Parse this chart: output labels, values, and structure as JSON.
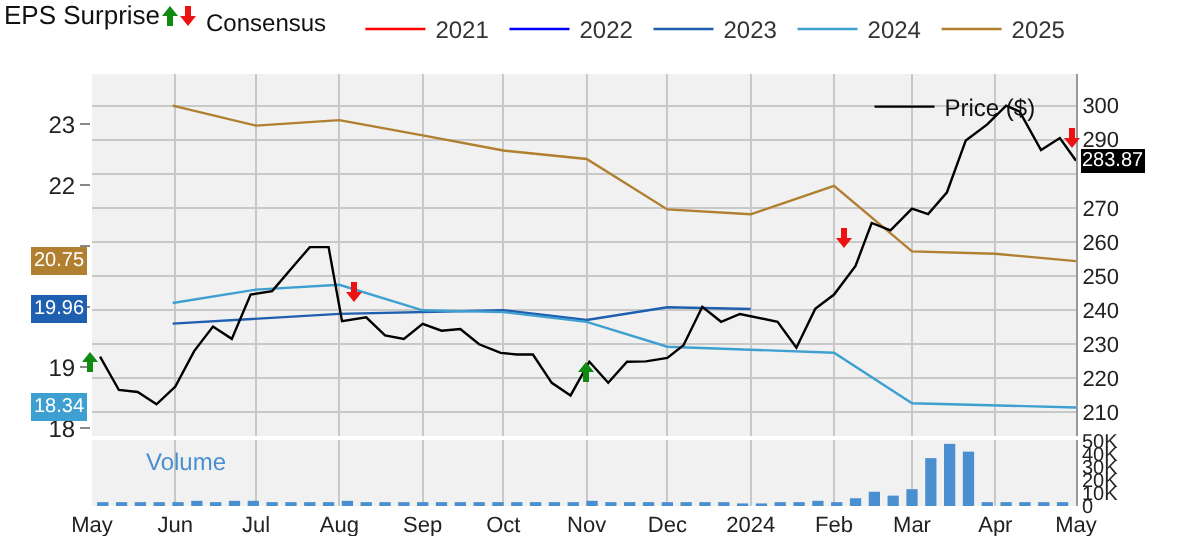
{
  "chart_data": [
    {
      "type": "line",
      "title": "EPS Surprise",
      "legend_title": "Consensus",
      "legend": "top",
      "grid": true,
      "tick_labels": "y",
      "xlim": [
        "2023-05-01",
        "2024-05-01"
      ],
      "xticks": [
        {
          "value": "2023-05-01",
          "label": null
        },
        {
          "value": "2023-06-01",
          "label": null
        },
        {
          "value": "2023-07-01",
          "label": null
        },
        {
          "value": "2023-08-01",
          "label": null
        },
        {
          "value": "2023-09-01",
          "label": null
        },
        {
          "value": "2023-10-01",
          "label": null
        },
        {
          "value": "2023-11-01",
          "label": null
        },
        {
          "value": "2023-12-01",
          "label": null
        },
        {
          "value": "2024-01-01",
          "label": null
        },
        {
          "value": "2024-02-01",
          "label": null
        },
        {
          "value": "2024-03-01",
          "label": null
        },
        {
          "value": "2024-04-01",
          "label": null
        },
        {
          "value": "2024-05-01",
          "label": null
        }
      ],
      "ylim": [
        17.87,
        23.83
      ],
      "yticks": [
        18,
        19,
        {
          "value": 20,
          "label": null
        },
        {
          "value": 21,
          "label": null
        },
        22,
        23
      ],
      "annotations": [
        {
          "text": "20.75",
          "y": 20.75
        },
        {
          "text": "19.96",
          "y": 19.96
        },
        {
          "text": "18.34",
          "y": 18.34
        }
      ],
      "y2lim": [
        203.1,
        309.3
      ],
      "y2ticks": [
        210,
        220,
        230,
        240,
        250,
        260,
        270,
        {
          "value": 280,
          "label": null
        },
        290,
        300
      ],
      "series": [
        {
          "name": "2021",
          "color": "#ff0000"
        },
        {
          "name": "2022",
          "color": "#0000ff"
        },
        {
          "name": "2023",
          "color": "#1f5fb0",
          "x": [
            "2023-05-31",
            "2023-08-01",
            "2023-10-01",
            "2023-11-01",
            "2023-12-01",
            "2024-01-01"
          ],
          "values": [
            19.72,
            19.88,
            19.94,
            19.78,
            19.99,
            19.96
          ]
        },
        {
          "name": "2024",
          "color": "#3ea0d0",
          "x": [
            "2023-05-31",
            "2023-07-01",
            "2023-08-01",
            "2023-09-01",
            "2023-10-01",
            "2023-11-01",
            "2023-12-01",
            "2024-02-01",
            "2024-03-01",
            "2024-05-01"
          ],
          "values": [
            20.06,
            20.28,
            20.36,
            19.94,
            19.91,
            19.75,
            19.34,
            19.24,
            18.41,
            18.34
          ]
        },
        {
          "name": "2025",
          "color": "#b07f30",
          "x": [
            "2023-05-31",
            "2023-07-01",
            "2023-08-01",
            "2023-09-01",
            "2023-10-01",
            "2023-11-01",
            "2023-12-01",
            "2024-01-01",
            "2024-02-01",
            "2024-03-01",
            "2024-04-01",
            "2024-05-01"
          ],
          "values": [
            23.31,
            22.98,
            23.07,
            22.82,
            22.57,
            22.43,
            21.6,
            21.52,
            21.99,
            20.91,
            20.87,
            20.75
          ]
        },
        {
          "name": "Price ($)",
          "color": "#000000",
          "axis": "y2",
          "x": [
            "2023-05-04",
            "2023-05-11",
            "2023-05-18",
            "2023-05-25",
            "2023-06-01",
            "2023-06-08",
            "2023-06-15",
            "2023-06-22",
            "2023-06-29",
            "2023-07-07",
            "2023-07-16",
            "2023-07-21",
            "2023-07-28",
            "2023-08-02",
            "2023-08-11",
            "2023-08-18",
            "2023-08-25",
            "2023-09-01",
            "2023-09-08",
            "2023-09-15",
            "2023-09-22",
            "2023-09-30",
            "2023-10-06",
            "2023-10-12",
            "2023-10-19",
            "2023-10-26",
            "2023-11-02",
            "2023-11-09",
            "2023-11-16",
            "2023-11-23",
            "2023-12-01",
            "2023-12-07",
            "2023-12-14",
            "2023-12-21",
            "2023-12-28",
            "2024-01-11",
            "2024-01-18",
            "2024-01-25",
            "2024-02-01",
            "2024-02-09",
            "2024-02-15",
            "2024-02-22",
            "2024-03-01",
            "2024-03-07",
            "2024-03-14",
            "2024-03-21",
            "2024-03-29",
            "2024-04-05",
            "2024-04-10",
            "2024-04-18",
            "2024-04-25",
            "2024-05-01"
          ],
          "values": [
            226.4,
            216.6,
            216,
            212.4,
            217.6,
            228,
            235.2,
            231.6,
            244.6,
            245.6,
            253.9,
            258.5,
            258.5,
            236.8,
            237.9,
            232.6,
            231.6,
            236,
            234,
            234.5,
            230,
            227.5,
            227,
            227,
            218.7,
            215,
            224.9,
            218.7,
            224.9,
            225,
            226,
            229.7,
            241,
            236.6,
            238.9,
            236.6,
            229,
            240.4,
            244.6,
            253,
            265.6,
            263.4,
            269.8,
            268.2,
            274.6,
            289.8,
            294.5,
            300,
            298.3,
            287,
            290.5,
            283.87
          ],
          "value_labels": [
            null,
            null,
            null,
            null,
            null,
            null,
            null,
            null,
            null,
            null,
            null,
            null,
            null,
            null,
            null,
            null,
            null,
            null,
            null,
            null,
            null,
            null,
            null,
            null,
            null,
            null,
            null,
            null,
            null,
            null,
            null,
            null,
            null,
            null,
            null,
            null,
            null,
            null,
            null,
            null,
            null,
            null,
            null,
            null,
            null,
            null,
            null,
            null,
            null,
            null,
            null,
            "283.87"
          ]
        }
      ]
    },
    {
      "type": "bar",
      "title": "Volume",
      "grid": "x",
      "xlim": [
        "2023-05-01",
        "2024-05-01"
      ],
      "xticks": [
        {
          "value": "2023-05-01",
          "label": "May"
        },
        {
          "value": "2023-06-01",
          "label": "Jun"
        },
        {
          "value": "2023-07-01",
          "label": "Jul"
        },
        {
          "value": "2023-08-01",
          "label": "Aug"
        },
        {
          "value": "2023-09-01",
          "label": "Sep"
        },
        {
          "value": "2023-10-01",
          "label": "Oct"
        },
        {
          "value": "2023-11-01",
          "label": "Nov"
        },
        {
          "value": "2023-12-01",
          "label": "Dec"
        },
        {
          "value": "2024-01-01",
          "label": "2024"
        },
        {
          "value": "2024-02-01",
          "label": "Feb"
        },
        {
          "value": "2024-03-01",
          "label": "Mar"
        },
        {
          "value": "2024-04-01",
          "label": "Apr"
        },
        {
          "value": "2024-05-01",
          "label": "May"
        }
      ],
      "y2lim": [
        0,
        51
      ],
      "y2ticks": [
        0,
        {
          "value": 10,
          "label": "10K"
        },
        {
          "value": 20,
          "label": "20K"
        },
        {
          "value": 30,
          "label": "30K"
        },
        {
          "value": 40,
          "label": "40K"
        },
        {
          "value": 50,
          "label": "50K"
        }
      ],
      "series": [
        {
          "color": "#4a90d0",
          "axis": "y2",
          "x": [
            "2023-05-05",
            "2023-05-12",
            "2023-05-19",
            "2023-05-26",
            "2023-06-02",
            "2023-06-09",
            "2023-06-16",
            "2023-06-23",
            "2023-06-30",
            "2023-07-07",
            "2023-07-14",
            "2023-07-21",
            "2023-07-28",
            "2023-08-04",
            "2023-08-11",
            "2023-08-18",
            "2023-08-25",
            "2023-09-01",
            "2023-09-08",
            "2023-09-15",
            "2023-09-22",
            "2023-09-29",
            "2023-10-06",
            "2023-10-13",
            "2023-10-20",
            "2023-10-27",
            "2023-11-03",
            "2023-11-10",
            "2023-11-17",
            "2023-11-24",
            "2023-12-01",
            "2023-12-08",
            "2023-12-15",
            "2023-12-22",
            "2023-12-29",
            "2024-01-05",
            "2024-01-12",
            "2024-01-19",
            "2024-01-26",
            "2024-02-02",
            "2024-02-09",
            "2024-02-16",
            "2024-02-23",
            "2024-03-01",
            "2024-03-08",
            "2024-03-15",
            "2024-03-22",
            "2024-03-29",
            "2024-04-05",
            "2024-04-12",
            "2024-04-19",
            "2024-04-26"
          ],
          "values": [
            3,
            3,
            3,
            3,
            3,
            4,
            3,
            4,
            4,
            3,
            3,
            3,
            3,
            4,
            3,
            3,
            3,
            3,
            3,
            3,
            3,
            3,
            3,
            3,
            3,
            3,
            4,
            3,
            3,
            3,
            3,
            3,
            3,
            3,
            2,
            2,
            3,
            3,
            4,
            3,
            6,
            11,
            8,
            13,
            37,
            48,
            42,
            3,
            3,
            3,
            3,
            3
          ]
        }
      ]
    }
  ]
}
